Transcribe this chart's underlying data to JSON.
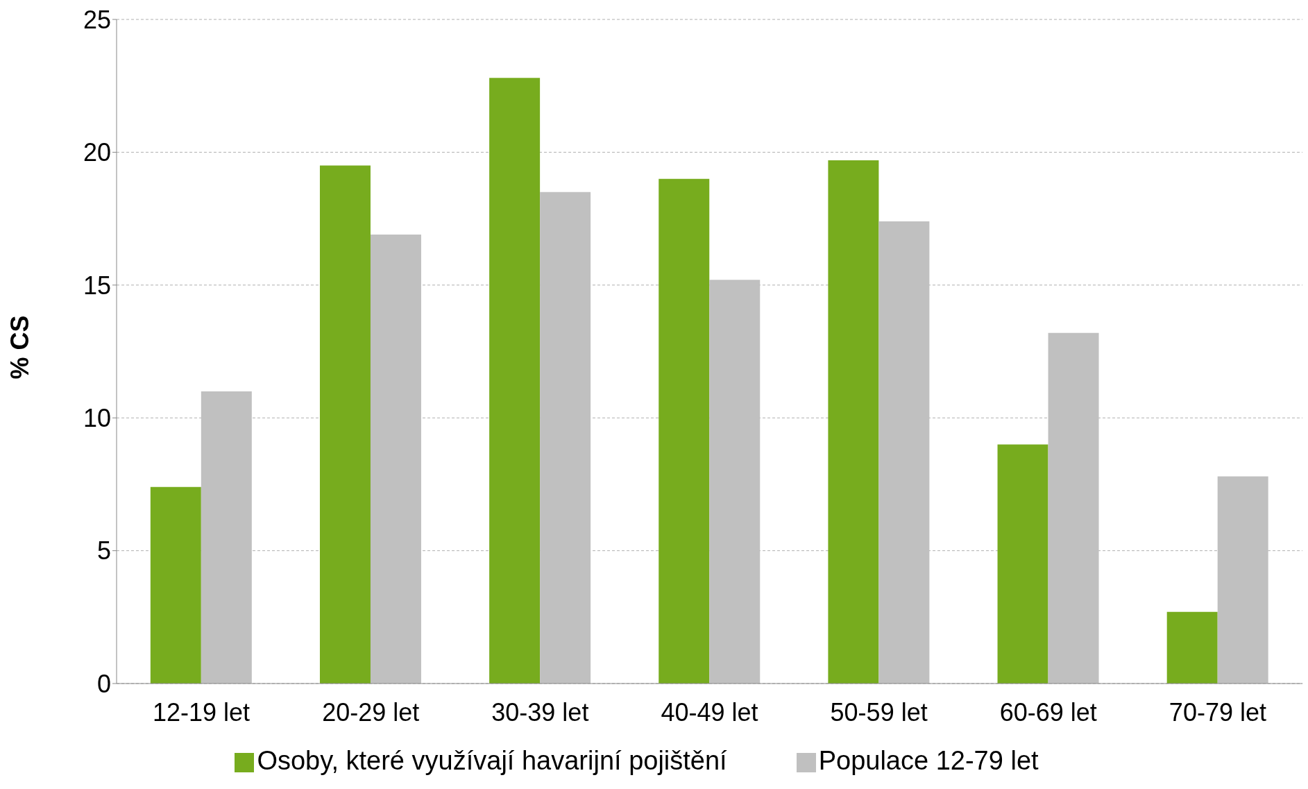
{
  "chart_data": {
    "type": "bar",
    "ylabel": "% CS",
    "categories": [
      "12-19 let",
      "20-29 let",
      "30-39 let",
      "40-49 let",
      "50-59 let",
      "60-69 let",
      "70-79 let"
    ],
    "series": [
      {
        "name": "Osoby, které využívají havarijní pojištění",
        "color": "#77ac1e",
        "values": [
          7.4,
          19.5,
          22.8,
          19.0,
          19.7,
          9.0,
          2.7
        ]
      },
      {
        "name": "Populace 12-79 let",
        "color": "#c0c0c0",
        "values": [
          11.0,
          16.9,
          18.5,
          15.2,
          17.4,
          13.2,
          7.8
        ]
      }
    ],
    "ylim": [
      0,
      25
    ],
    "yticks": [
      0,
      5,
      10,
      15,
      20,
      25
    ],
    "grid": "y",
    "legend": "bottom"
  }
}
